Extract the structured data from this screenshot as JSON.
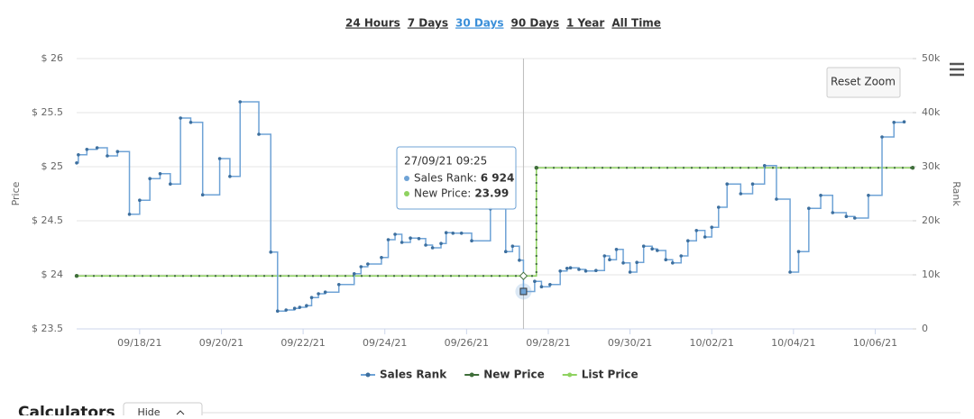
{
  "ranges": [
    "24 Hours",
    "7 Days",
    "30 Days",
    "90 Days",
    "1 Year",
    "All Time"
  ],
  "active_range": 2,
  "reset_zoom": "Reset Zoom",
  "calculators": {
    "title": "Calculators",
    "button": "Hide"
  },
  "chart_data": {
    "type": "line",
    "step": true,
    "y_label": "Price",
    "y2_label": "Rank",
    "xlim": [
      "2021-09-16T11:00",
      "2021-10-06T22:00"
    ],
    "xticks": [
      {
        "value": "2021-09-18T00:00",
        "label": "09/18/21"
      },
      {
        "value": "2021-09-20T00:00",
        "label": "09/20/21"
      },
      {
        "value": "2021-09-22T00:00",
        "label": "09/22/21"
      },
      {
        "value": "2021-09-24T00:00",
        "label": "09/24/21"
      },
      {
        "value": "2021-09-26T00:00",
        "label": "09/26/21"
      },
      {
        "value": "2021-09-28T00:00",
        "label": "09/28/21"
      },
      {
        "value": "2021-09-30T00:00",
        "label": "09/30/21"
      },
      {
        "value": "2021-10-02T00:00",
        "label": "10/02/21"
      },
      {
        "value": "2021-10-04T00:00",
        "label": "10/04/21"
      },
      {
        "value": "2021-10-06T00:00",
        "label": "10/06/21"
      }
    ],
    "ylim": [
      23.5,
      26
    ],
    "yticks": [
      {
        "value": 23.5,
        "label": "$ 23.5"
      },
      {
        "value": 24,
        "label": "$ 24"
      },
      {
        "value": 24.5,
        "label": "$ 24.5"
      },
      {
        "value": 25,
        "label": "$ 25"
      },
      {
        "value": 25.5,
        "label": "$ 25.5"
      },
      {
        "value": 26,
        "label": "$ 26"
      }
    ],
    "y2lim": [
      0,
      50000
    ],
    "y2ticks": [
      0,
      {
        "value": 10000,
        "label": "10k"
      },
      {
        "value": 20000,
        "label": "20k"
      },
      {
        "value": 30000,
        "label": "30k"
      },
      {
        "value": 40000,
        "label": "40k"
      },
      {
        "value": 50000,
        "label": "50k"
      }
    ],
    "grid": true,
    "series": [
      {
        "name": "Sales Rank",
        "color": "#6fa3d6",
        "axis": "y2",
        "x": [
          "2021-09-16T11:00",
          "2021-09-16T12:00",
          "2021-09-16T17:00",
          "2021-09-16T23:00",
          "2021-09-17T05:00",
          "2021-09-17T11:00",
          "2021-09-17T18:00",
          "2021-09-18T00:00",
          "2021-09-18T06:00",
          "2021-09-18T12:00",
          "2021-09-18T18:00",
          "2021-09-19T00:00",
          "2021-09-19T06:00",
          "2021-09-19T13:00",
          "2021-09-19T23:00",
          "2021-09-20T05:00",
          "2021-09-20T11:00",
          "2021-09-20T22:00",
          "2021-09-21T05:00",
          "2021-09-21T09:00",
          "2021-09-21T14:00",
          "2021-09-21T19:00",
          "2021-09-21T22:00",
          "2021-09-22T02:00",
          "2021-09-22T05:00",
          "2021-09-22T09:00",
          "2021-09-22T13:00",
          "2021-09-22T21:00",
          "2021-09-23T06:00",
          "2021-09-23T10:00",
          "2021-09-23T14:00",
          "2021-09-23T22:00",
          "2021-09-24T02:00",
          "2021-09-24T06:00",
          "2021-09-24T10:00",
          "2021-09-24T15:00",
          "2021-09-24T20:00",
          "2021-09-25T00:00",
          "2021-09-25T04:00",
          "2021-09-25T09:00",
          "2021-09-25T12:00",
          "2021-09-25T16:00",
          "2021-09-25T21:00",
          "2021-09-26T03:00",
          "2021-09-26T14:00",
          "2021-09-26T23:00",
          "2021-09-27T03:00",
          "2021-09-27T07:00",
          "2021-09-27T09:25",
          "2021-09-27T16:00",
          "2021-09-27T20:00",
          "2021-09-28T01:00",
          "2021-09-28T07:00",
          "2021-09-28T11:00",
          "2021-09-28T13:00",
          "2021-09-28T18:00",
          "2021-09-28T22:00",
          "2021-09-29T04:00",
          "2021-09-29T09:00",
          "2021-09-29T12:00",
          "2021-09-29T16:00",
          "2021-09-29T20:00",
          "2021-09-30T00:00",
          "2021-09-30T04:00",
          "2021-09-30T08:00",
          "2021-09-30T13:00",
          "2021-09-30T16:00",
          "2021-09-30T21:00",
          "2021-10-01T01:00",
          "2021-10-01T06:00",
          "2021-10-01T10:00",
          "2021-10-01T15:00",
          "2021-10-01T20:00",
          "2021-10-02T00:00",
          "2021-10-02T04:00",
          "2021-10-02T09:00",
          "2021-10-02T17:00",
          "2021-10-03T00:00",
          "2021-10-03T07:00",
          "2021-10-03T14:00",
          "2021-10-03T22:00",
          "2021-10-04T03:00",
          "2021-10-04T09:00",
          "2021-10-04T16:00",
          "2021-10-04T23:00",
          "2021-10-05T07:00",
          "2021-10-05T12:00",
          "2021-10-05T20:00",
          "2021-10-06T04:00",
          "2021-10-06T11:00",
          "2021-10-06T17:00"
        ],
        "values": [
          30700,
          32200,
          33200,
          33500,
          32000,
          32800,
          21200,
          23800,
          27800,
          28700,
          26800,
          39000,
          38200,
          24800,
          31500,
          28200,
          42000,
          36000,
          14200,
          3300,
          3500,
          3800,
          4000,
          4300,
          5800,
          6500,
          6800,
          8200,
          10200,
          11500,
          12000,
          13200,
          16500,
          17500,
          16000,
          16800,
          16700,
          15500,
          15000,
          15800,
          17800,
          17700,
          17700,
          16300,
          22200,
          14300,
          15300,
          12700,
          6924,
          8800,
          7800,
          8200,
          10700,
          11200,
          11300,
          11000,
          10700,
          10800,
          13500,
          12800,
          14700,
          12200,
          10500,
          12300,
          15300,
          14800,
          14500,
          12800,
          12200,
          13500,
          16300,
          18200,
          17000,
          18800,
          22500,
          26800,
          25000,
          26800,
          30200,
          24000,
          10500,
          14300,
          22300,
          24700,
          21500,
          20800,
          20500,
          24700,
          35500,
          38200,
          38300
        ]
      },
      {
        "name": "New Price",
        "color": "#3f6e3a",
        "x": [
          "2021-09-16T11:00",
          "2021-09-27T09:25",
          "2021-09-27T17:00",
          "2021-10-06T22:00"
        ],
        "values": [
          23.99,
          23.99,
          24.99,
          24.99
        ]
      },
      {
        "name": "List Price",
        "color": "#8fd260",
        "x": [
          "2021-09-16T11:00",
          "2021-09-27T09:25",
          "2021-09-27T17:00",
          "2021-10-06T22:00"
        ],
        "values": [
          23.99,
          23.99,
          24.99,
          24.99
        ]
      }
    ],
    "tooltip": {
      "title": "27/09/21 09:25",
      "point": 48,
      "items": [
        {
          "label": "Sales Rank:",
          "value": "6 924"
        },
        {
          "label": "New Price:",
          "value": "23.99"
        }
      ]
    }
  }
}
